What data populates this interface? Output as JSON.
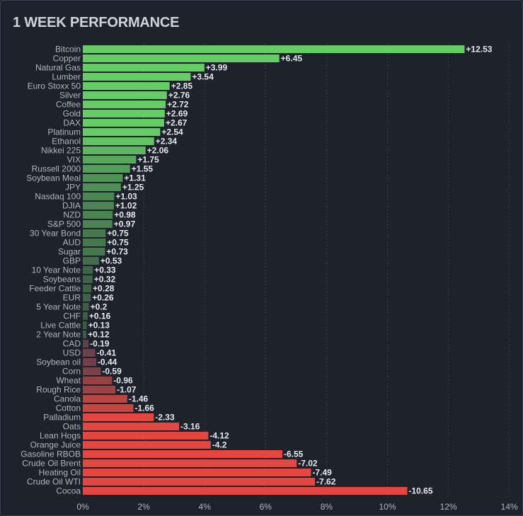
{
  "header": {
    "title": "1 WEEK PERFORMANCE"
  },
  "colors": {
    "background": "#1e222d",
    "positive_strong": "#66cc66",
    "positive_weak": "#3a5a45",
    "negative_weak": "#5c3f4a",
    "negative_strong": "#e5463f",
    "grid": "#3a3e4a"
  },
  "chart_data": {
    "type": "bar",
    "orientation": "horizontal",
    "title": "1 WEEK PERFORMANCE",
    "xlabel": "",
    "ylabel": "",
    "xlim": [
      0,
      14
    ],
    "x_ticks": [
      "0%",
      "2%",
      "4%",
      "6%",
      "8%",
      "10%",
      "12%",
      "14%"
    ],
    "grid": true,
    "categories": [
      "Bitcoin",
      "Copper",
      "Natural Gas",
      "Lumber",
      "Euro Stoxx 50",
      "Silver",
      "Coffee",
      "Gold",
      "DAX",
      "Platinum",
      "Ethanol",
      "Nikkei 225",
      "VIX",
      "Russell 2000",
      "Soybean Meal",
      "JPY",
      "Nasdaq 100",
      "DJIA",
      "NZD",
      "S&P 500",
      "30 Year Bond",
      "AUD",
      "Sugar",
      "GBP",
      "10 Year Note",
      "Soybeans",
      "Feeder Cattle",
      "EUR",
      "5 Year Note",
      "CHF",
      "Live Cattle",
      "2 Year Note",
      "CAD",
      "USD",
      "Soybean oil",
      "Corn",
      "Wheat",
      "Rough Rice",
      "Canola",
      "Cotton",
      "Palladium",
      "Oats",
      "Lean Hogs",
      "Orange Juice",
      "Gasoline RBOB",
      "Crude Oil Brent",
      "Heating Oil",
      "Crude Oil WTI",
      "Cocoa"
    ],
    "values": [
      12.53,
      6.45,
      3.99,
      3.54,
      2.85,
      2.76,
      2.72,
      2.69,
      2.67,
      2.54,
      2.34,
      2.06,
      1.75,
      1.55,
      1.31,
      1.25,
      1.03,
      1.02,
      0.98,
      0.97,
      0.75,
      0.75,
      0.73,
      0.53,
      0.33,
      0.32,
      0.28,
      0.26,
      0.2,
      0.16,
      0.13,
      0.12,
      -0.19,
      -0.41,
      -0.44,
      -0.59,
      -0.96,
      -1.07,
      -1.46,
      -1.66,
      -2.33,
      -3.16,
      -4.12,
      -4.2,
      -6.55,
      -7.02,
      -7.49,
      -7.62,
      -10.65
    ],
    "value_labels": [
      "+12.53",
      "+6.45",
      "+3.99",
      "+3.54",
      "+2.85",
      "+2.76",
      "+2.72",
      "+2.69",
      "+2.67",
      "+2.54",
      "+2.34",
      "+2.06",
      "+1.75",
      "+1.55",
      "+1.31",
      "+1.25",
      "+1.03",
      "+1.02",
      "+0.98",
      "+0.97",
      "+0.75",
      "+0.75",
      "+0.73",
      "+0.53",
      "+0.33",
      "+0.32",
      "+0.28",
      "+0.26",
      "+0.2",
      "+0.16",
      "+0.13",
      "+0.12",
      "-0.19",
      "-0.41",
      "-0.44",
      "-0.59",
      "-0.96",
      "-1.07",
      "-1.46",
      "-1.66",
      "-2.33",
      "-3.16",
      "-4.12",
      "-4.2",
      "-6.55",
      "-7.02",
      "-7.49",
      "-7.62",
      "-10.65"
    ]
  }
}
